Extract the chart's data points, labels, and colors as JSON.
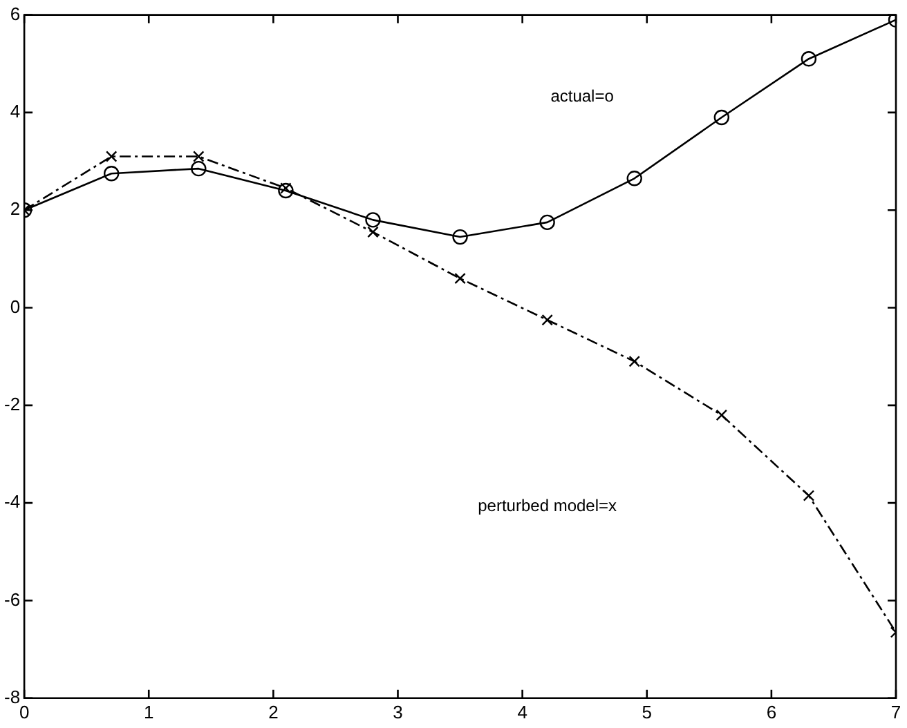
{
  "chart_data": {
    "type": "line",
    "x": [
      0,
      0.7,
      1.4,
      2.1,
      2.8,
      3.5,
      4.2,
      4.9,
      5.6,
      6.3,
      7
    ],
    "series": [
      {
        "color": "#000000",
        "marker": "circle",
        "line_style": "solid",
        "values": [
          2.0,
          2.75,
          2.85,
          2.4,
          1.8,
          1.45,
          1.75,
          2.65,
          3.9,
          5.1,
          5.9
        ]
      },
      {
        "color": "#000000",
        "marker": "cross",
        "line_style": "dashed",
        "values": [
          2.0,
          3.1,
          3.1,
          2.45,
          1.55,
          0.6,
          -0.25,
          -1.1,
          -2.2,
          -3.85,
          -6.65
        ]
      }
    ],
    "xlim": [
      0,
      7
    ],
    "xticks": [
      0,
      1,
      2,
      3,
      4,
      5,
      6,
      7
    ],
    "ylim": [
      -8,
      6
    ],
    "yticks": [
      -8,
      -6,
      -4,
      -2,
      0,
      2,
      4,
      6
    ],
    "grid": false,
    "legend": false,
    "annotations": [
      "actual=o",
      "perturbed model=x"
    ]
  }
}
